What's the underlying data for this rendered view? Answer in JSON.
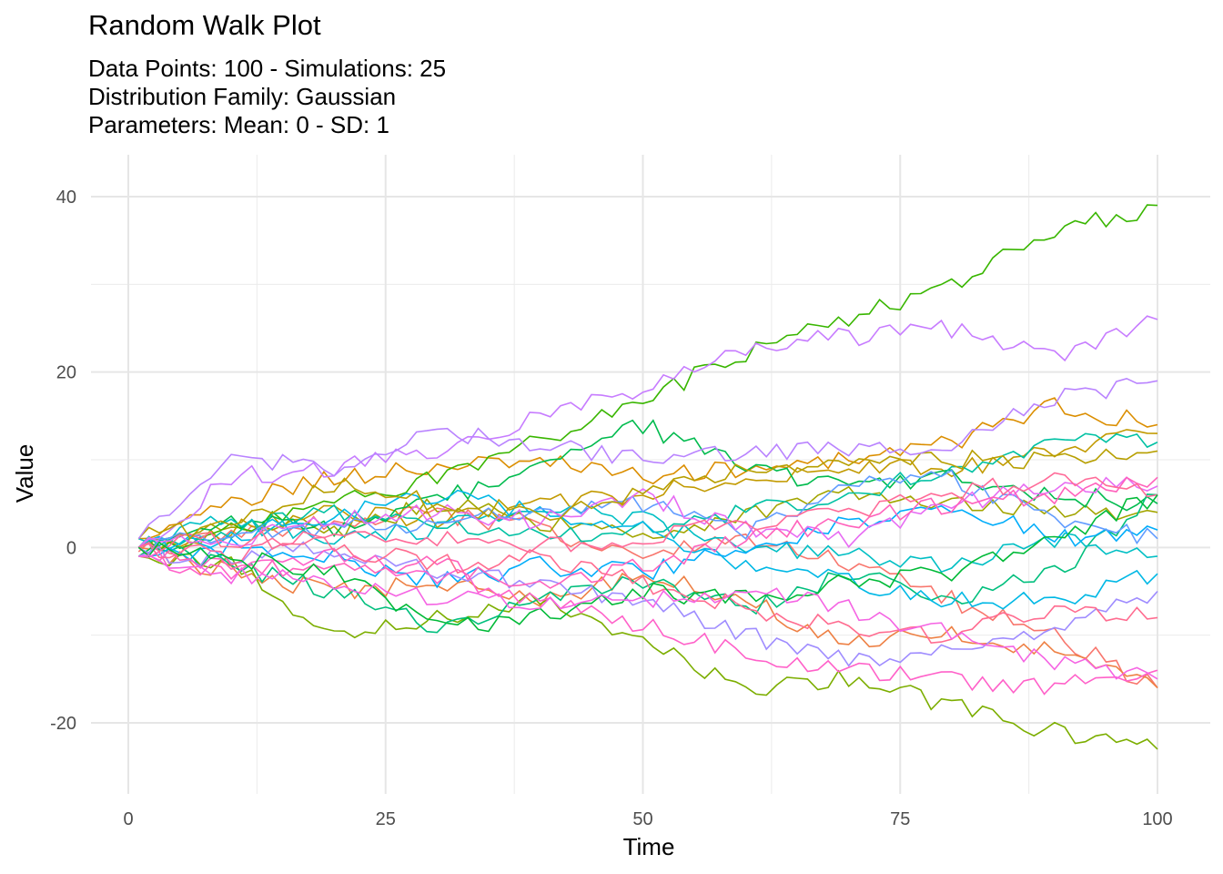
{
  "chart_data": {
    "type": "line",
    "title": "Random Walk Plot",
    "subtitle_lines": [
      "Data Points: 100 - Simulations: 25",
      "Distribution Family: Gaussian",
      "Parameters: Mean: 0 - SD: 1"
    ],
    "xlabel": "Time",
    "ylabel": "Value",
    "xlim": [
      0,
      100
    ],
    "ylim": [
      -28,
      44
    ],
    "x_ticks": [
      0,
      25,
      50,
      75,
      100
    ],
    "x_tick_labels": [
      "0",
      "25",
      "50",
      "75",
      "100"
    ],
    "y_ticks": [
      -20,
      0,
      20,
      40
    ],
    "y_tick_labels": [
      "-20",
      "0",
      "20",
      "40"
    ],
    "grid": true,
    "legend": "none",
    "series": [
      {
        "color": "#F8766D",
        "x": [
          1,
          10,
          20,
          30,
          40,
          50,
          60,
          70,
          80,
          90,
          100
        ],
        "y": [
          -0.5,
          1,
          3,
          4,
          2,
          -1,
          1,
          -2,
          -6,
          -10,
          -16
        ]
      },
      {
        "color": "#EE8044",
        "x": [
          1,
          10,
          20,
          30,
          40,
          50,
          60,
          70,
          80,
          90,
          100
        ],
        "y": [
          0,
          -3,
          -5,
          -4,
          -6,
          -3,
          -6,
          -11,
          -10,
          -12,
          -16
        ]
      },
      {
        "color": "#DB8E00",
        "x": [
          1,
          10,
          20,
          30,
          40,
          50,
          60,
          70,
          80,
          90,
          100
        ],
        "y": [
          1,
          5,
          8,
          9,
          10,
          8,
          9,
          10,
          12,
          16,
          14
        ]
      },
      {
        "color": "#C29A00",
        "x": [
          1,
          10,
          20,
          30,
          40,
          50,
          60,
          70,
          80,
          90,
          100
        ],
        "y": [
          0,
          2,
          4,
          3,
          5,
          6,
          8,
          9,
          9,
          11,
          13
        ]
      },
      {
        "color": "#A3A500",
        "x": [
          1,
          10,
          20,
          30,
          40,
          50,
          60,
          70,
          80,
          90,
          100
        ],
        "y": [
          0,
          3,
          2,
          5,
          3,
          1,
          4,
          6,
          5,
          4,
          4
        ]
      },
      {
        "color": "#7CAE00",
        "x": [
          1,
          10,
          20,
          30,
          40,
          50,
          60,
          70,
          80,
          90,
          100
        ],
        "y": [
          -1,
          -2,
          -10,
          -8,
          -6,
          -11,
          -16,
          -15,
          -18,
          -21,
          -23
        ]
      },
      {
        "color": "#39B600",
        "x": [
          1,
          10,
          20,
          30,
          40,
          50,
          60,
          70,
          80,
          90,
          100
        ],
        "y": [
          0,
          2,
          5,
          8,
          12,
          17,
          22,
          26,
          30,
          36,
          39
        ]
      },
      {
        "color": "#00BB4E",
        "x": [
          1,
          10,
          20,
          30,
          40,
          50,
          60,
          70,
          80,
          90,
          100
        ],
        "y": [
          -1,
          3,
          2,
          5,
          10,
          14,
          9,
          7,
          8,
          6,
          5
        ]
      },
      {
        "color": "#00BF7D",
        "x": [
          1,
          10,
          20,
          30,
          40,
          50,
          60,
          70,
          80,
          90,
          100
        ],
        "y": [
          0,
          -2,
          -5,
          -9,
          -6,
          -4,
          -7,
          -3,
          -6,
          -3,
          6
        ]
      },
      {
        "color": "#00C1A3",
        "x": [
          1,
          10,
          20,
          30,
          40,
          50,
          60,
          70,
          80,
          90,
          100
        ],
        "y": [
          0,
          2,
          4,
          3,
          1,
          2,
          4,
          6,
          9,
          12,
          12
        ]
      },
      {
        "color": "#00BFC4",
        "x": [
          1,
          10,
          20,
          30,
          40,
          50,
          60,
          70,
          80,
          90,
          100
        ],
        "y": [
          1,
          3,
          1,
          2,
          5,
          3,
          0,
          -1,
          -2,
          1,
          -1
        ]
      },
      {
        "color": "#00B8E5",
        "x": [
          1,
          10,
          20,
          30,
          40,
          50,
          60,
          70,
          80,
          90,
          100
        ],
        "y": [
          0,
          1,
          4,
          6,
          4,
          2,
          -2,
          -4,
          -6,
          -6,
          -3
        ]
      },
      {
        "color": "#00ADFA",
        "x": [
          1,
          10,
          20,
          30,
          40,
          50,
          60,
          70,
          80,
          90,
          100
        ],
        "y": [
          -1,
          0,
          -1,
          -4,
          -2,
          -3,
          0,
          3,
          5,
          1,
          2
        ]
      },
      {
        "color": "#619CFF",
        "x": [
          1,
          10,
          20,
          30,
          40,
          50,
          60,
          70,
          80,
          90,
          100
        ],
        "y": [
          0,
          2,
          2,
          3,
          4,
          5,
          2,
          7,
          8,
          3,
          1
        ]
      },
      {
        "color": "#9F8CFF",
        "x": [
          1,
          10,
          20,
          30,
          40,
          50,
          60,
          70,
          80,
          90,
          100
        ],
        "y": [
          -1,
          -1,
          0,
          -3,
          -4,
          -6,
          -10,
          -13,
          -12,
          -9,
          -5
        ]
      },
      {
        "color": "#C77CFF",
        "x": [
          1,
          10,
          20,
          30,
          40,
          50,
          60,
          70,
          80,
          90,
          100
        ],
        "y": [
          0,
          8,
          9,
          11,
          15,
          18,
          23,
          24,
          25,
          22,
          26
        ]
      },
      {
        "color": "#E76BF3",
        "x": [
          1,
          10,
          20,
          30,
          40,
          50,
          60,
          70,
          80,
          90,
          100
        ],
        "y": [
          0,
          1,
          3,
          4,
          3,
          6,
          2,
          1,
          5,
          7,
          7
        ]
      },
      {
        "color": "#FF61C9",
        "x": [
          1,
          10,
          20,
          30,
          40,
          50,
          60,
          70,
          80,
          90,
          100
        ],
        "y": [
          -1,
          -3,
          -1,
          -3,
          -6,
          -9,
          -12,
          -14,
          -15,
          -16,
          -14
        ]
      },
      {
        "color": "#FF62BC",
        "x": [
          1,
          10,
          20,
          30,
          40,
          50,
          60,
          70,
          80,
          90,
          100
        ],
        "y": [
          0,
          -2,
          -3,
          -2,
          -4,
          -2,
          1,
          3,
          5,
          6,
          8
        ]
      },
      {
        "color": "#FF6C90",
        "x": [
          1,
          10,
          20,
          30,
          40,
          50,
          60,
          70,
          80,
          90,
          100
        ],
        "y": [
          0,
          1,
          0,
          -2,
          -1,
          -4,
          -7,
          -9,
          -10,
          -7,
          -8
        ]
      },
      {
        "color": "#FF6A98",
        "x": [
          1,
          10,
          20,
          30,
          40,
          50,
          60,
          70,
          80,
          90,
          100
        ],
        "y": [
          0,
          -1,
          2,
          1,
          0,
          1,
          3,
          4,
          6,
          8,
          6
        ]
      },
      {
        "color": "#B79F00",
        "x": [
          1,
          10,
          20,
          30,
          40,
          50,
          60,
          70,
          80,
          90,
          100
        ],
        "y": [
          1,
          3,
          7,
          5,
          4,
          6,
          9,
          10,
          10,
          10,
          11
        ]
      },
      {
        "color": "#00BA38",
        "x": [
          1,
          10,
          20,
          30,
          40,
          50,
          60,
          70,
          80,
          90,
          100
        ],
        "y": [
          0,
          -1,
          -3,
          -9,
          -8,
          -5,
          -6,
          -4,
          -3,
          1,
          6
        ]
      },
      {
        "color": "#B983FF",
        "x": [
          1,
          10,
          20,
          30,
          40,
          50,
          60,
          70,
          80,
          90,
          100
        ],
        "y": [
          1,
          10,
          9,
          13,
          12,
          10,
          11,
          11,
          12,
          17,
          19
        ]
      },
      {
        "color": "#F564E3",
        "x": [
          1,
          10,
          20,
          30,
          40,
          50,
          60,
          70,
          80,
          90,
          100
        ],
        "y": [
          -1,
          -3,
          -4,
          -6,
          -6,
          -6,
          -5,
          -7,
          -10,
          -13,
          -15
        ]
      }
    ]
  }
}
